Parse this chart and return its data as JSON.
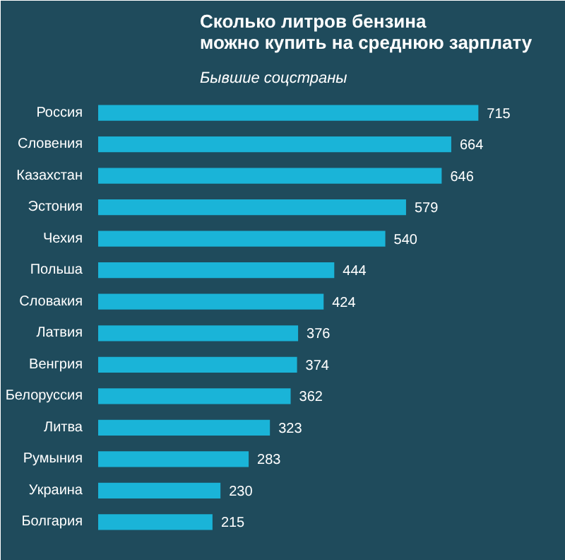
{
  "chart_data": {
    "type": "bar",
    "orientation": "horizontal",
    "title": "Сколько литров бензина\nможно купить на среднюю зарплату",
    "subtitle": "Бывшие соцстраны",
    "categories": [
      "Россия",
      "Словения",
      "Казахстан",
      "Эстония",
      "Чехия",
      "Польша",
      "Словакия",
      "Латвия",
      "Венгрия",
      "Белоруссия",
      "Литва",
      "Румыния",
      "Украина",
      "Болгария"
    ],
    "values": [
      715,
      664,
      646,
      579,
      540,
      444,
      424,
      376,
      374,
      362,
      323,
      283,
      230,
      215
    ],
    "color": "#1ab4d8",
    "data_labels": true,
    "grid": false
  }
}
